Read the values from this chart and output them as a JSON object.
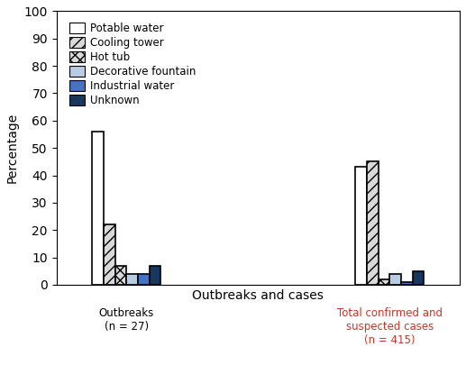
{
  "series": [
    {
      "label": "Potable water",
      "values": [
        56,
        43
      ],
      "color": "#ffffff",
      "edgecolor": "#000000",
      "hatch": null
    },
    {
      "label": "Cooling tower",
      "values": [
        22,
        45
      ],
      "color": "#d9d9d9",
      "edgecolor": "#000000",
      "hatch": "///"
    },
    {
      "label": "Hot tub",
      "values": [
        7,
        2
      ],
      "color": "#d9d9d9",
      "edgecolor": "#000000",
      "hatch": "xxx"
    },
    {
      "label": "Decorative fountain",
      "values": [
        4,
        4
      ],
      "color": "#b8cce4",
      "edgecolor": "#000000",
      "hatch": null
    },
    {
      "label": "Industrial water",
      "values": [
        4,
        1
      ],
      "color": "#4472c4",
      "edgecolor": "#000000",
      "hatch": null
    },
    {
      "label": "Unknown",
      "values": [
        7,
        5
      ],
      "color": "#17375e",
      "edgecolor": "#000000",
      "hatch": null
    }
  ],
  "group_labels": [
    "Outbreaks\n(n = 27)",
    "Total confirmed and\nsuspected cases\n(n = 415)"
  ],
  "group_label_colors": [
    "#000000",
    "#c0392b"
  ],
  "ylim": [
    0,
    100
  ],
  "yticks": [
    0,
    10,
    20,
    30,
    40,
    50,
    60,
    70,
    80,
    90,
    100
  ],
  "ylabel": "Percentage",
  "xlabel": "Outbreaks and cases",
  "bar_width": 0.065,
  "group_centers": [
    1.0,
    2.5
  ],
  "linewidth": 1.2,
  "legend_fontsize": 8.5,
  "axis_fontsize": 10
}
